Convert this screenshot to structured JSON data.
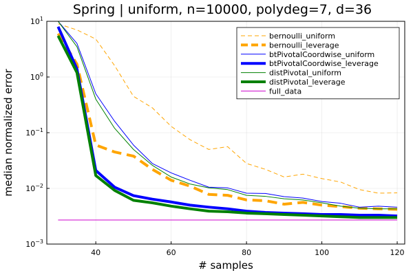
{
  "chart_data": {
    "type": "line",
    "title": "Spring | uniform, n=10000, polydeg=7, d=36",
    "xlabel": "# samples",
    "ylabel": "median normalized error",
    "xlim": [
      27,
      122
    ],
    "ylim": [
      0.001,
      10
    ],
    "yscale": "log",
    "x_ticks": [
      40,
      60,
      80,
      100,
      120
    ],
    "y_ticks": [
      {
        "value": 0.001,
        "base": "10",
        "exp": "−3"
      },
      {
        "value": 0.01,
        "base": "10",
        "exp": "−2"
      },
      {
        "value": 0.1,
        "base": "10",
        "exp": "−1"
      },
      {
        "value": 1,
        "base": "10",
        "exp": "0"
      },
      {
        "value": 10,
        "base": "10",
        "exp": "1"
      }
    ],
    "grid": true,
    "legend_position": "top-right",
    "x": [
      30,
      35,
      40,
      45,
      50,
      55,
      60,
      65,
      70,
      75,
      80,
      85,
      90,
      95,
      100,
      105,
      110,
      115,
      120
    ],
    "series": [
      {
        "name": "bernoulli_uniform",
        "color": "#FFA500",
        "width": 1,
        "dash": "6,4",
        "values": [
          9,
          7,
          4.8,
          1.6,
          0.45,
          0.28,
          0.13,
          0.075,
          0.05,
          0.056,
          0.028,
          0.022,
          0.016,
          0.018,
          0.015,
          0.013,
          0.0095,
          0.0082,
          0.0083
        ]
      },
      {
        "name": "bernoulli_leverage",
        "color": "#FFA500",
        "width": 4,
        "dash": "14,8",
        "values": [
          6,
          1.7,
          0.06,
          0.045,
          0.038,
          0.022,
          0.014,
          0.011,
          0.0078,
          0.0075,
          0.0062,
          0.006,
          0.0052,
          0.0056,
          0.005,
          0.0047,
          0.0044,
          0.0043,
          0.0042
        ]
      },
      {
        "name": "btPivotalCoordwise_uniform",
        "color": "#0000FF",
        "width": 1,
        "dash": "",
        "values": [
          10,
          4,
          0.5,
          0.16,
          0.06,
          0.028,
          0.019,
          0.014,
          0.0105,
          0.0102,
          0.0082,
          0.0081,
          0.0071,
          0.0067,
          0.0058,
          0.0054,
          0.0046,
          0.0048,
          0.0046
        ]
      },
      {
        "name": "btPivotalCoordwise_leverage",
        "color": "#0000FF",
        "width": 4,
        "dash": "",
        "values": [
          8,
          1.4,
          0.021,
          0.0105,
          0.0074,
          0.0064,
          0.0057,
          0.005,
          0.0046,
          0.0043,
          0.0039,
          0.0037,
          0.0036,
          0.0035,
          0.0034,
          0.0034,
          0.0033,
          0.0033,
          0.0032
        ]
      },
      {
        "name": "distPivotal_uniform",
        "color": "#008000",
        "width": 1,
        "dash": "",
        "values": [
          10,
          3.5,
          0.4,
          0.12,
          0.05,
          0.026,
          0.016,
          0.012,
          0.0102,
          0.0095,
          0.0075,
          0.0072,
          0.0065,
          0.0062,
          0.0055,
          0.0048,
          0.0044,
          0.0043,
          0.0043
        ]
      },
      {
        "name": "distPivotal_leverage",
        "color": "#008000",
        "width": 4,
        "dash": "",
        "values": [
          5.5,
          1.2,
          0.017,
          0.0092,
          0.0061,
          0.0055,
          0.0048,
          0.0043,
          0.0039,
          0.0038,
          0.0036,
          0.0035,
          0.0034,
          0.0033,
          0.0032,
          0.0031,
          0.003,
          0.003,
          0.003
        ]
      },
      {
        "name": "full_data",
        "color": "#CC00CC",
        "width": 1,
        "dash": "",
        "values": [
          0.0027,
          0.0027,
          0.0027,
          0.0027,
          0.0027,
          0.0027,
          0.0027,
          0.0027,
          0.0027,
          0.0027,
          0.0027,
          0.0027,
          0.0027,
          0.0027,
          0.0027,
          0.0027,
          0.0027,
          0.0027,
          0.0027
        ]
      }
    ]
  }
}
